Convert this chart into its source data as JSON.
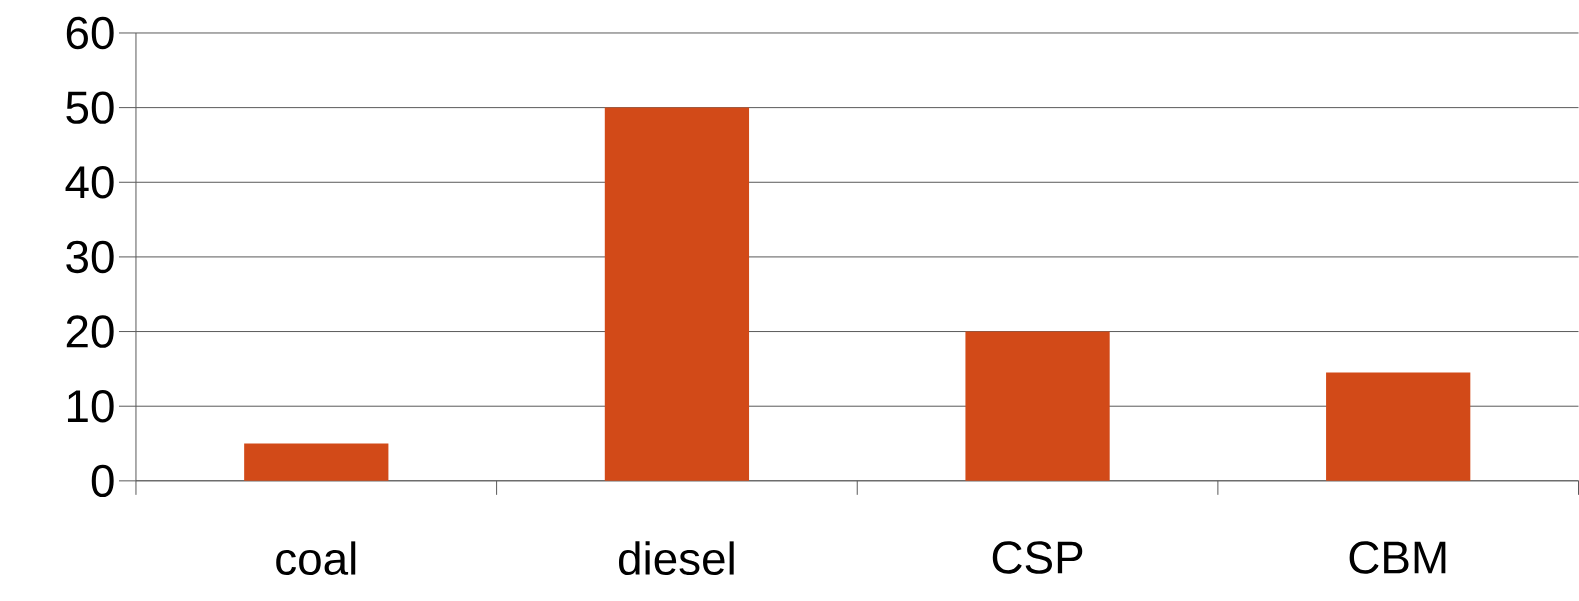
{
  "chart_data": {
    "type": "bar",
    "categories": [
      "coal",
      "diesel",
      "CSP",
      "CBM"
    ],
    "values": [
      5,
      50,
      20,
      14.5
    ],
    "color": "#d24a18",
    "ylim": [
      0,
      60
    ],
    "yticks": [
      0,
      10,
      20,
      30,
      40,
      50,
      60
    ],
    "grid": "y"
  }
}
